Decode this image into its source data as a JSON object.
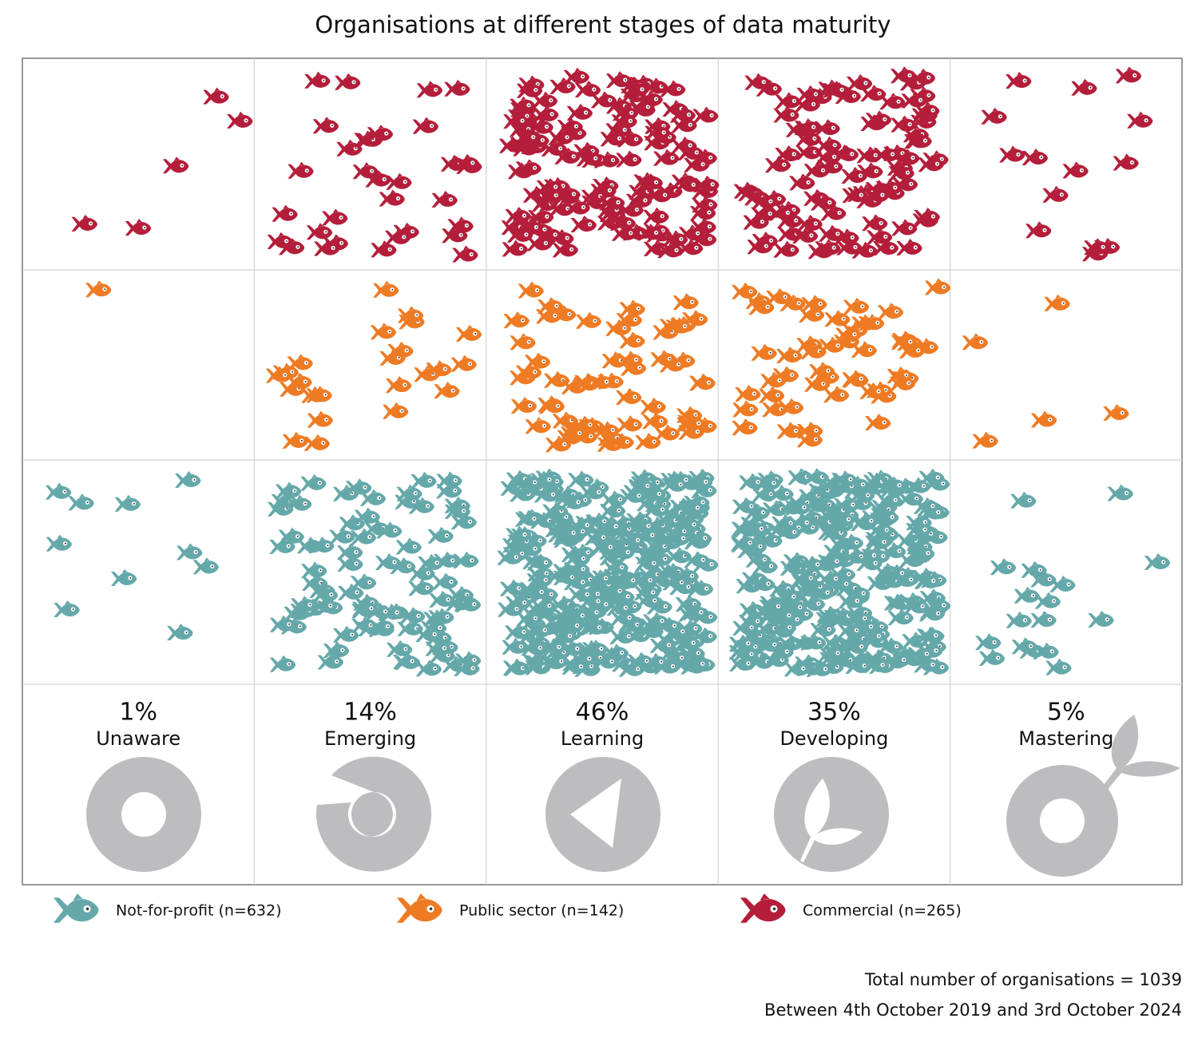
{
  "chart_data": {
    "type": "swarm",
    "title": "Organisations at different stages of data maturity",
    "categories": [
      "Unaware",
      "Emerging",
      "Learning",
      "Developing",
      "Mastering"
    ],
    "values": [
      1,
      14,
      46,
      35,
      5
    ],
    "value_labels": [
      "1%",
      "14%",
      "46%",
      "35%",
      "5%"
    ],
    "series": [
      {
        "name": "Not-for-profit (n=632)",
        "color": "#65a8aa",
        "count": 632
      },
      {
        "name": "Public sector (n=142)",
        "color": "#ee7b24",
        "count": 142
      },
      {
        "name": "Commercial (n=265)",
        "color": "#b41e3a",
        "count": 265
      }
    ],
    "grid": true,
    "footnotes": [
      "Total number of organisations = 1039",
      "Between 4th October 2019 and 3rd October 2024"
    ]
  }
}
